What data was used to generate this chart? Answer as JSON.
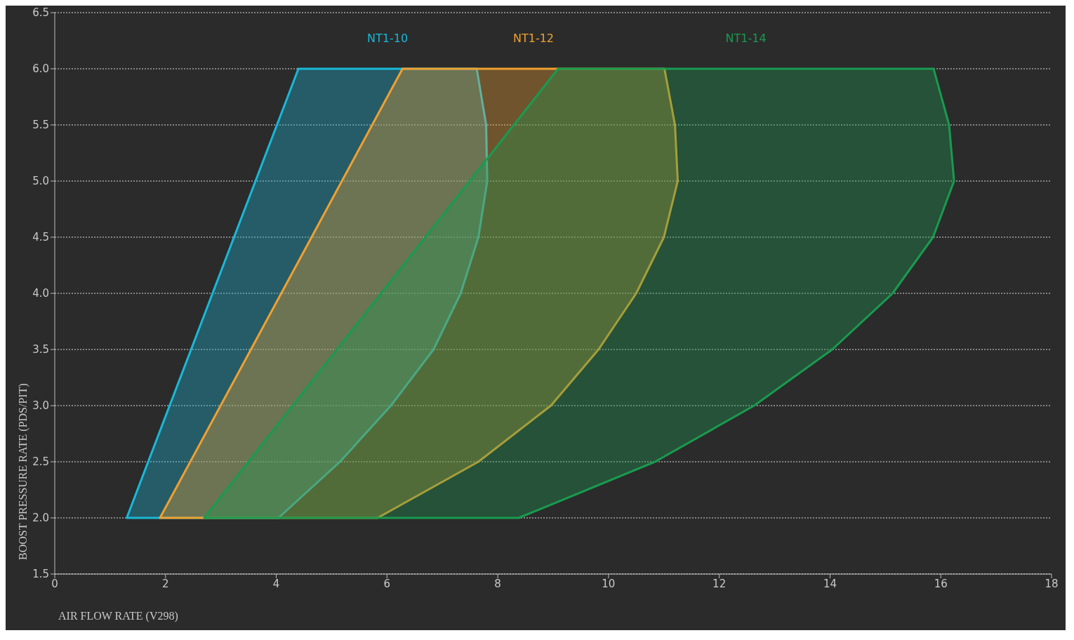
{
  "chart_data": {
    "type": "area",
    "xlabel": "AIR FLOW RATE (V298)",
    "ylabel": "BOOST PRESSURE RATE (PDS/PIT)",
    "xlim": [
      0,
      18
    ],
    "xticks": [
      0,
      2,
      4,
      6,
      8,
      10,
      12,
      14,
      16,
      18
    ],
    "ylim": [
      1.5,
      6.5
    ],
    "yticks": [
      1.5,
      {
        "value": 2,
        "label": "2.0"
      },
      2.5,
      {
        "value": 3,
        "label": "3.0"
      },
      3.5,
      {
        "value": 4,
        "label": "4.0"
      },
      4.5,
      {
        "value": 5,
        "label": "5.0"
      },
      5.5,
      {
        "value": 6,
        "label": "6.0"
      },
      6.5
    ],
    "grid": "y",
    "series": [
      {
        "name": "NT1-10",
        "color": "#1ab8d8",
        "x": [
          1.3,
          4.4,
          7.62,
          7.79,
          7.81,
          7.65,
          7.33,
          6.84,
          6.07,
          5.15,
          4.04
        ],
        "values": [
          2,
          6,
          6,
          5.5,
          5,
          4.5,
          4,
          3.5,
          3,
          2.5,
          2
        ]
      },
      {
        "name": "NT1-12",
        "color": "#f0a030",
        "x": [
          1.9,
          6.28,
          11.01,
          11.2,
          11.25,
          11.0,
          10.5,
          9.82,
          8.96,
          7.65,
          5.83
        ],
        "values": [
          2,
          6,
          6,
          5.5,
          5,
          4.5,
          4,
          3.5,
          3,
          2.5,
          2
        ]
      },
      {
        "name": "NT1-14",
        "color": "#1a9a50",
        "x": [
          2.7,
          9.09,
          15.87,
          16.15,
          16.24,
          15.86,
          15.13,
          14.04,
          12.63,
          10.84,
          8.38
        ],
        "values": [
          2,
          6,
          6,
          5.5,
          5,
          4.5,
          4,
          3.5,
          3,
          2.5,
          2
        ]
      }
    ]
  }
}
